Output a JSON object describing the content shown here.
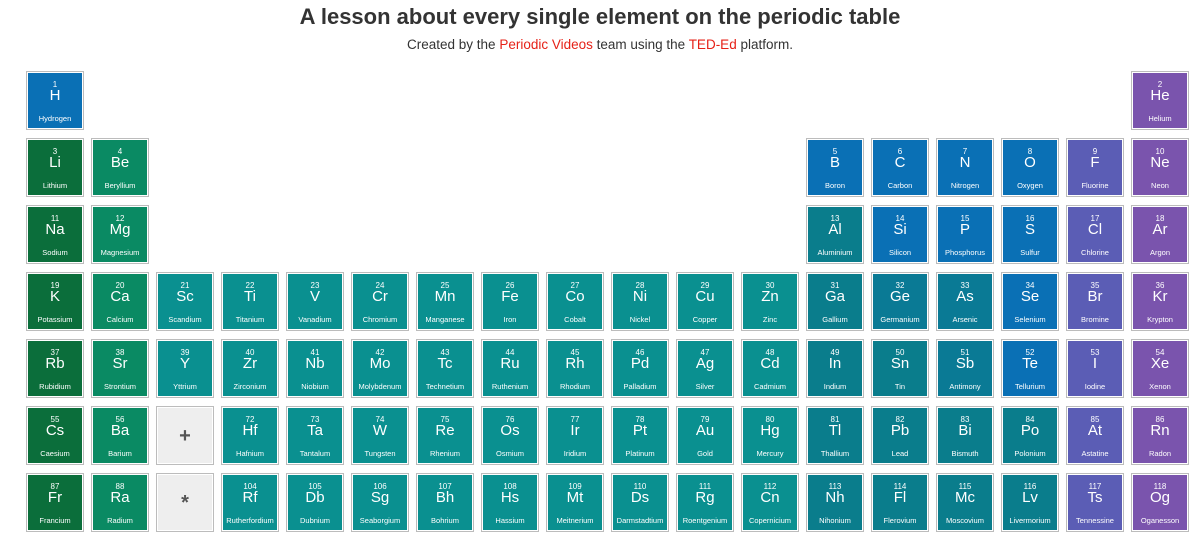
{
  "header": {
    "title": "A lesson about every single element on the periodic table",
    "subtitle_pre": "Created by the ",
    "subtitle_link1": "Periodic Videos",
    "subtitle_mid": " team using the ",
    "subtitle_link2": "TED-Ed",
    "subtitle_post": " platform."
  },
  "colors": {
    "alkali": "#0b6e3b",
    "alkaline": "#0a8a63",
    "transition": "#0a9090",
    "post_transition": "#0a7d8c",
    "metalloid": "#0a7a95",
    "nonmetal": "#0a70b5",
    "halogen": "#5b5db5",
    "noble": "#7a54ad",
    "link": "#e62117",
    "placeholder": "#eeeeee"
  },
  "placeholders": [
    {
      "mark": "+",
      "row": 6,
      "col": 3
    },
    {
      "mark": "*",
      "row": 7,
      "col": 3
    }
  ],
  "elements": [
    {
      "n": 1,
      "sym": "H",
      "name": "Hydrogen",
      "row": 1,
      "col": 1,
      "cat": "nonmetal"
    },
    {
      "n": 2,
      "sym": "He",
      "name": "Helium",
      "row": 1,
      "col": 18,
      "cat": "noble"
    },
    {
      "n": 3,
      "sym": "Li",
      "name": "Lithium",
      "row": 2,
      "col": 1,
      "cat": "alkali"
    },
    {
      "n": 4,
      "sym": "Be",
      "name": "Beryllium",
      "row": 2,
      "col": 2,
      "cat": "alkaline"
    },
    {
      "n": 5,
      "sym": "B",
      "name": "Boron",
      "row": 2,
      "col": 13,
      "cat": "nonmetal"
    },
    {
      "n": 6,
      "sym": "C",
      "name": "Carbon",
      "row": 2,
      "col": 14,
      "cat": "nonmetal"
    },
    {
      "n": 7,
      "sym": "N",
      "name": "Nitrogen",
      "row": 2,
      "col": 15,
      "cat": "nonmetal"
    },
    {
      "n": 8,
      "sym": "O",
      "name": "Oxygen",
      "row": 2,
      "col": 16,
      "cat": "nonmetal"
    },
    {
      "n": 9,
      "sym": "F",
      "name": "Fluorine",
      "row": 2,
      "col": 17,
      "cat": "halogen"
    },
    {
      "n": 10,
      "sym": "Ne",
      "name": "Neon",
      "row": 2,
      "col": 18,
      "cat": "noble"
    },
    {
      "n": 11,
      "sym": "Na",
      "name": "Sodium",
      "row": 3,
      "col": 1,
      "cat": "alkali"
    },
    {
      "n": 12,
      "sym": "Mg",
      "name": "Magnesium",
      "row": 3,
      "col": 2,
      "cat": "alkaline"
    },
    {
      "n": 13,
      "sym": "Al",
      "name": "Aluminium",
      "row": 3,
      "col": 13,
      "cat": "post_transition"
    },
    {
      "n": 14,
      "sym": "Si",
      "name": "Silicon",
      "row": 3,
      "col": 14,
      "cat": "nonmetal"
    },
    {
      "n": 15,
      "sym": "P",
      "name": "Phosphorus",
      "row": 3,
      "col": 15,
      "cat": "nonmetal"
    },
    {
      "n": 16,
      "sym": "S",
      "name": "Sulfur",
      "row": 3,
      "col": 16,
      "cat": "nonmetal"
    },
    {
      "n": 17,
      "sym": "Cl",
      "name": "Chlorine",
      "row": 3,
      "col": 17,
      "cat": "halogen"
    },
    {
      "n": 18,
      "sym": "Ar",
      "name": "Argon",
      "row": 3,
      "col": 18,
      "cat": "noble"
    },
    {
      "n": 19,
      "sym": "K",
      "name": "Potassium",
      "row": 4,
      "col": 1,
      "cat": "alkali"
    },
    {
      "n": 20,
      "sym": "Ca",
      "name": "Calcium",
      "row": 4,
      "col": 2,
      "cat": "alkaline"
    },
    {
      "n": 21,
      "sym": "Sc",
      "name": "Scandium",
      "row": 4,
      "col": 3,
      "cat": "transition"
    },
    {
      "n": 22,
      "sym": "Ti",
      "name": "Titanium",
      "row": 4,
      "col": 4,
      "cat": "transition"
    },
    {
      "n": 23,
      "sym": "V",
      "name": "Vanadium",
      "row": 4,
      "col": 5,
      "cat": "transition"
    },
    {
      "n": 24,
      "sym": "Cr",
      "name": "Chromium",
      "row": 4,
      "col": 6,
      "cat": "transition"
    },
    {
      "n": 25,
      "sym": "Mn",
      "name": "Manganese",
      "row": 4,
      "col": 7,
      "cat": "transition"
    },
    {
      "n": 26,
      "sym": "Fe",
      "name": "Iron",
      "row": 4,
      "col": 8,
      "cat": "transition"
    },
    {
      "n": 27,
      "sym": "Co",
      "name": "Cobalt",
      "row": 4,
      "col": 9,
      "cat": "transition"
    },
    {
      "n": 28,
      "sym": "Ni",
      "name": "Nickel",
      "row": 4,
      "col": 10,
      "cat": "transition"
    },
    {
      "n": 29,
      "sym": "Cu",
      "name": "Copper",
      "row": 4,
      "col": 11,
      "cat": "transition"
    },
    {
      "n": 30,
      "sym": "Zn",
      "name": "Zinc",
      "row": 4,
      "col": 12,
      "cat": "transition"
    },
    {
      "n": 31,
      "sym": "Ga",
      "name": "Gallium",
      "row": 4,
      "col": 13,
      "cat": "post_transition"
    },
    {
      "n": 32,
      "sym": "Ge",
      "name": "Germanium",
      "row": 4,
      "col": 14,
      "cat": "metalloid"
    },
    {
      "n": 33,
      "sym": "As",
      "name": "Arsenic",
      "row": 4,
      "col": 15,
      "cat": "metalloid"
    },
    {
      "n": 34,
      "sym": "Se",
      "name": "Selenium",
      "row": 4,
      "col": 16,
      "cat": "nonmetal"
    },
    {
      "n": 35,
      "sym": "Br",
      "name": "Bromine",
      "row": 4,
      "col": 17,
      "cat": "halogen"
    },
    {
      "n": 36,
      "sym": "Kr",
      "name": "Krypton",
      "row": 4,
      "col": 18,
      "cat": "noble"
    },
    {
      "n": 37,
      "sym": "Rb",
      "name": "Rubidium",
      "row": 5,
      "col": 1,
      "cat": "alkali"
    },
    {
      "n": 38,
      "sym": "Sr",
      "name": "Strontium",
      "row": 5,
      "col": 2,
      "cat": "alkaline"
    },
    {
      "n": 39,
      "sym": "Y",
      "name": "Yttrium",
      "row": 5,
      "col": 3,
      "cat": "transition"
    },
    {
      "n": 40,
      "sym": "Zr",
      "name": "Zirconium",
      "row": 5,
      "col": 4,
      "cat": "transition"
    },
    {
      "n": 41,
      "sym": "Nb",
      "name": "Niobium",
      "row": 5,
      "col": 5,
      "cat": "transition"
    },
    {
      "n": 42,
      "sym": "Mo",
      "name": "Molybdenum",
      "row": 5,
      "col": 6,
      "cat": "transition"
    },
    {
      "n": 43,
      "sym": "Tc",
      "name": "Technetium",
      "row": 5,
      "col": 7,
      "cat": "transition"
    },
    {
      "n": 44,
      "sym": "Ru",
      "name": "Ruthenium",
      "row": 5,
      "col": 8,
      "cat": "transition"
    },
    {
      "n": 45,
      "sym": "Rh",
      "name": "Rhodium",
      "row": 5,
      "col": 9,
      "cat": "transition"
    },
    {
      "n": 46,
      "sym": "Pd",
      "name": "Palladium",
      "row": 5,
      "col": 10,
      "cat": "transition"
    },
    {
      "n": 47,
      "sym": "Ag",
      "name": "Silver",
      "row": 5,
      "col": 11,
      "cat": "transition"
    },
    {
      "n": 48,
      "sym": "Cd",
      "name": "Cadmium",
      "row": 5,
      "col": 12,
      "cat": "transition"
    },
    {
      "n": 49,
      "sym": "In",
      "name": "Indium",
      "row": 5,
      "col": 13,
      "cat": "post_transition"
    },
    {
      "n": 50,
      "sym": "Sn",
      "name": "Tin",
      "row": 5,
      "col": 14,
      "cat": "post_transition"
    },
    {
      "n": 51,
      "sym": "Sb",
      "name": "Antimony",
      "row": 5,
      "col": 15,
      "cat": "metalloid"
    },
    {
      "n": 52,
      "sym": "Te",
      "name": "Tellurium",
      "row": 5,
      "col": 16,
      "cat": "nonmetal"
    },
    {
      "n": 53,
      "sym": "I",
      "name": "Iodine",
      "row": 5,
      "col": 17,
      "cat": "halogen"
    },
    {
      "n": 54,
      "sym": "Xe",
      "name": "Xenon",
      "row": 5,
      "col": 18,
      "cat": "noble"
    },
    {
      "n": 55,
      "sym": "Cs",
      "name": "Caesium",
      "row": 6,
      "col": 1,
      "cat": "alkali"
    },
    {
      "n": 56,
      "sym": "Ba",
      "name": "Barium",
      "row": 6,
      "col": 2,
      "cat": "alkaline"
    },
    {
      "n": 72,
      "sym": "Hf",
      "name": "Hafnium",
      "row": 6,
      "col": 4,
      "cat": "transition"
    },
    {
      "n": 73,
      "sym": "Ta",
      "name": "Tantalum",
      "row": 6,
      "col": 5,
      "cat": "transition"
    },
    {
      "n": 74,
      "sym": "W",
      "name": "Tungsten",
      "row": 6,
      "col": 6,
      "cat": "transition"
    },
    {
      "n": 75,
      "sym": "Re",
      "name": "Rhenium",
      "row": 6,
      "col": 7,
      "cat": "transition"
    },
    {
      "n": 76,
      "sym": "Os",
      "name": "Osmium",
      "row": 6,
      "col": 8,
      "cat": "transition"
    },
    {
      "n": 77,
      "sym": "Ir",
      "name": "Iridium",
      "row": 6,
      "col": 9,
      "cat": "transition"
    },
    {
      "n": 78,
      "sym": "Pt",
      "name": "Platinum",
      "row": 6,
      "col": 10,
      "cat": "transition"
    },
    {
      "n": 79,
      "sym": "Au",
      "name": "Gold",
      "row": 6,
      "col": 11,
      "cat": "transition"
    },
    {
      "n": 80,
      "sym": "Hg",
      "name": "Mercury",
      "row": 6,
      "col": 12,
      "cat": "transition"
    },
    {
      "n": 81,
      "sym": "Tl",
      "name": "Thallium",
      "row": 6,
      "col": 13,
      "cat": "post_transition"
    },
    {
      "n": 82,
      "sym": "Pb",
      "name": "Lead",
      "row": 6,
      "col": 14,
      "cat": "post_transition"
    },
    {
      "n": 83,
      "sym": "Bi",
      "name": "Bismuth",
      "row": 6,
      "col": 15,
      "cat": "post_transition"
    },
    {
      "n": 84,
      "sym": "Po",
      "name": "Polonium",
      "row": 6,
      "col": 16,
      "cat": "post_transition"
    },
    {
      "n": 85,
      "sym": "At",
      "name": "Astatine",
      "row": 6,
      "col": 17,
      "cat": "halogen"
    },
    {
      "n": 86,
      "sym": "Rn",
      "name": "Radon",
      "row": 6,
      "col": 18,
      "cat": "noble"
    },
    {
      "n": 87,
      "sym": "Fr",
      "name": "Francium",
      "row": 7,
      "col": 1,
      "cat": "alkali"
    },
    {
      "n": 88,
      "sym": "Ra",
      "name": "Radium",
      "row": 7,
      "col": 2,
      "cat": "alkaline"
    },
    {
      "n": 104,
      "sym": "Rf",
      "name": "Rutherfordium",
      "row": 7,
      "col": 4,
      "cat": "transition"
    },
    {
      "n": 105,
      "sym": "Db",
      "name": "Dubnium",
      "row": 7,
      "col": 5,
      "cat": "transition"
    },
    {
      "n": 106,
      "sym": "Sg",
      "name": "Seaborgium",
      "row": 7,
      "col": 6,
      "cat": "transition"
    },
    {
      "n": 107,
      "sym": "Bh",
      "name": "Bohrium",
      "row": 7,
      "col": 7,
      "cat": "transition"
    },
    {
      "n": 108,
      "sym": "Hs",
      "name": "Hassium",
      "row": 7,
      "col": 8,
      "cat": "transition"
    },
    {
      "n": 109,
      "sym": "Mt",
      "name": "Meitnerium",
      "row": 7,
      "col": 9,
      "cat": "transition"
    },
    {
      "n": 110,
      "sym": "Ds",
      "name": "Darmstadtium",
      "row": 7,
      "col": 10,
      "cat": "transition"
    },
    {
      "n": 111,
      "sym": "Rg",
      "name": "Roentgenium",
      "row": 7,
      "col": 11,
      "cat": "transition"
    },
    {
      "n": 112,
      "sym": "Cn",
      "name": "Copernicium",
      "row": 7,
      "col": 12,
      "cat": "transition"
    },
    {
      "n": 113,
      "sym": "Nh",
      "name": "Nihonium",
      "row": 7,
      "col": 13,
      "cat": "post_transition"
    },
    {
      "n": 114,
      "sym": "Fl",
      "name": "Flerovium",
      "row": 7,
      "col": 14,
      "cat": "post_transition"
    },
    {
      "n": 115,
      "sym": "Mc",
      "name": "Moscovium",
      "row": 7,
      "col": 15,
      "cat": "post_transition"
    },
    {
      "n": 116,
      "sym": "Lv",
      "name": "Livermorium",
      "row": 7,
      "col": 16,
      "cat": "post_transition"
    },
    {
      "n": 117,
      "sym": "Ts",
      "name": "Tennessine",
      "row": 7,
      "col": 17,
      "cat": "halogen"
    },
    {
      "n": 118,
      "sym": "Og",
      "name": "Oganesson",
      "row": 7,
      "col": 18,
      "cat": "noble"
    }
  ]
}
